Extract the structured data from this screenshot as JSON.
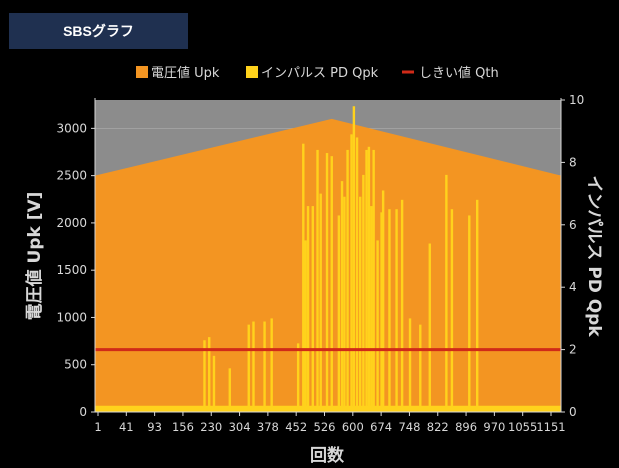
{
  "tab": {
    "label": "SBSグラフ"
  },
  "colors": {
    "background": "#000000",
    "plot_bg": "#8c8c8c",
    "voltage": "#f39522",
    "pulse": "#ffd21c",
    "threshold": "#d02a18",
    "axis_text": "#d8d8d8"
  },
  "chart_data": {
    "type": "area",
    "legend": {
      "position": "top-center",
      "items": [
        {
          "label": "電圧値 Upk",
          "marker": "square",
          "color": "#f39522"
        },
        {
          "label": "インパルス PD Qpk",
          "marker": "square",
          "color": "#ffd21c"
        },
        {
          "label": "しきい値 Qth",
          "marker": "line",
          "color": "#d02a18"
        }
      ]
    },
    "xlabel": "回数",
    "ylabel_left": "電圧値 Upk [V]",
    "ylabel_right": "インパルス PD Qpk",
    "xlim": [
      1,
      1180
    ],
    "x_ticks": [
      "1",
      "41",
      "93",
      "156",
      "230",
      "304",
      "378",
      "452",
      "526",
      "600",
      "674",
      "748",
      "822",
      "896",
      "970",
      "1055",
      "1151"
    ],
    "ylim_left": [
      0,
      3300
    ],
    "yticks_left": [
      0,
      500,
      1000,
      1500,
      2000,
      2500,
      3000
    ],
    "ylim_right": [
      0,
      10
    ],
    "yticks_right": [
      0,
      2,
      4,
      6,
      8,
      10
    ],
    "grid": true,
    "series": [
      {
        "name": "電圧値 Upk",
        "type": "area",
        "axis": "left",
        "x": [
          1,
          600,
          1180
        ],
        "y": [
          2500,
          3100,
          2500
        ]
      },
      {
        "name": "しきい値 Qth",
        "type": "line",
        "axis": "right",
        "value": 2
      },
      {
        "name": "インパルス PD Qpk",
        "type": "bar",
        "axis": "right",
        "baseline": 0.2,
        "points": [
          [
            278,
            2.3
          ],
          [
            290,
            2.4
          ],
          [
            302,
            1.8
          ],
          [
            342,
            1.4
          ],
          [
            390,
            2.8
          ],
          [
            402,
            2.9
          ],
          [
            430,
            2.9
          ],
          [
            448,
            3.0
          ],
          [
            515,
            2.2
          ],
          [
            528,
            8.6
          ],
          [
            534,
            5.5
          ],
          [
            540,
            6.6
          ],
          [
            552,
            6.6
          ],
          [
            564,
            8.4
          ],
          [
            572,
            7.0
          ],
          [
            588,
            8.3
          ],
          [
            600,
            8.2
          ],
          [
            618,
            6.3
          ],
          [
            626,
            7.4
          ],
          [
            632,
            6.9
          ],
          [
            640,
            8.4
          ],
          [
            650,
            8.9
          ],
          [
            656,
            9.8
          ],
          [
            664,
            8.8
          ],
          [
            672,
            6.9
          ],
          [
            680,
            7.6
          ],
          [
            688,
            8.4
          ],
          [
            694,
            8.5
          ],
          [
            700,
            6.6
          ],
          [
            706,
            8.4
          ],
          [
            716,
            5.5
          ],
          [
            726,
            6.4
          ],
          [
            730,
            7.1
          ],
          [
            746,
            6.5
          ],
          [
            764,
            6.5
          ],
          [
            778,
            6.8
          ],
          [
            798,
            3.0
          ],
          [
            824,
            2.8
          ],
          [
            848,
            5.4
          ],
          [
            890,
            7.6
          ],
          [
            904,
            6.5
          ],
          [
            948,
            6.3
          ],
          [
            968,
            6.8
          ]
        ]
      }
    ]
  }
}
